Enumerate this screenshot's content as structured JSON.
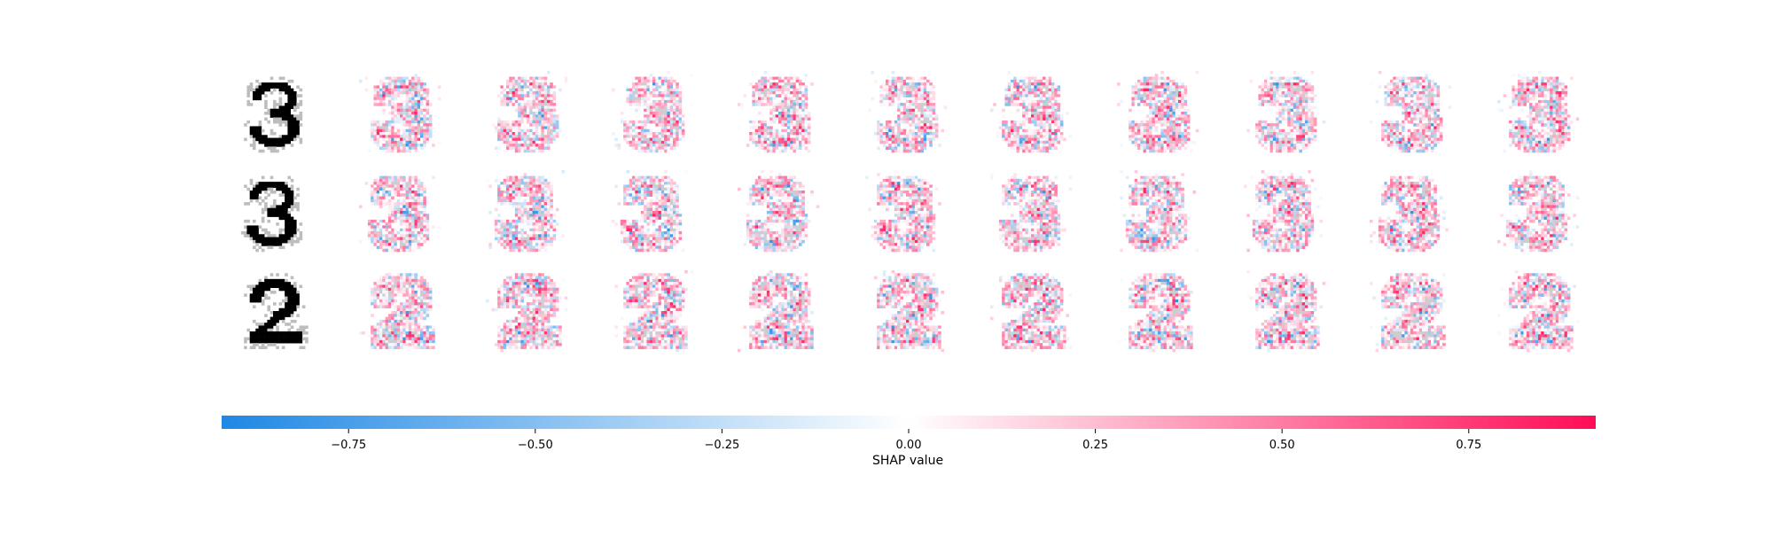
{
  "chart_data": {
    "type": "heatmap",
    "description_rows": [
      {
        "digit": "3",
        "style": "row1"
      },
      {
        "digit": "3",
        "style": "row2"
      },
      {
        "digit": "2",
        "style": "row3"
      }
    ],
    "explanations_per_row": 10,
    "colorbar": {
      "label": "SHAP value",
      "range": [
        -0.92,
        0.92
      ],
      "ticks": [
        -0.75,
        -0.5,
        -0.25,
        0.0,
        0.25,
        0.5,
        0.75
      ],
      "tick_labels": [
        "−0.75",
        "−0.50",
        "−0.25",
        "0.00",
        "0.25",
        "0.50",
        "0.75"
      ],
      "colors": {
        "negative": "#1E88E5",
        "zero": "#FFFFFF",
        "positive": "#FF0D57"
      }
    }
  }
}
